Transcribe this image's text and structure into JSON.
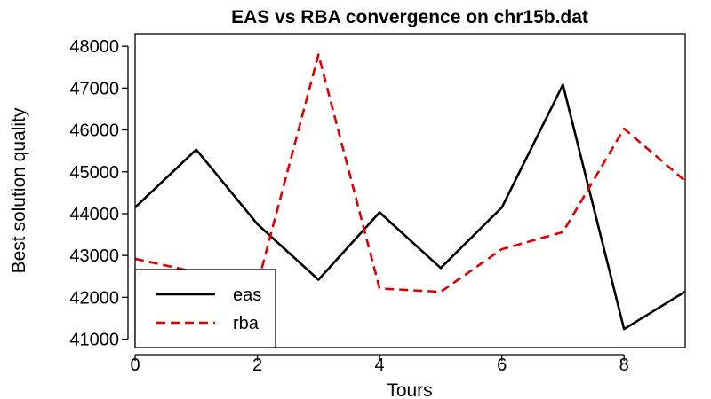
{
  "chart_data": {
    "type": "line",
    "title": "EAS vs RBA convergence on chr15b.dat",
    "xlabel": "Tours",
    "ylabel": "Best solution quality",
    "x": [
      0,
      1,
      2,
      3,
      4,
      5,
      6,
      7,
      8,
      9
    ],
    "xlim": [
      0,
      9
    ],
    "ylim": [
      40800,
      48300
    ],
    "xticks": [
      "0",
      "2",
      "4",
      "6",
      "8"
    ],
    "yticks": [
      "41000",
      "42000",
      "43000",
      "44000",
      "45000",
      "46000",
      "47000",
      "48000"
    ],
    "series": [
      {
        "name": "eas",
        "color": "#000000",
        "dash": "solid",
        "values": [
          44150,
          45530,
          43750,
          42420,
          44030,
          42700,
          44150,
          47080,
          41240,
          42140
        ]
      },
      {
        "name": "rba",
        "color": "#e00000",
        "dash": "dashed",
        "values": [
          42920,
          42600,
          42300,
          47800,
          42210,
          42130,
          43150,
          43560,
          46030,
          44780
        ]
      }
    ],
    "legend_position": "bottom-left",
    "grid": false
  }
}
